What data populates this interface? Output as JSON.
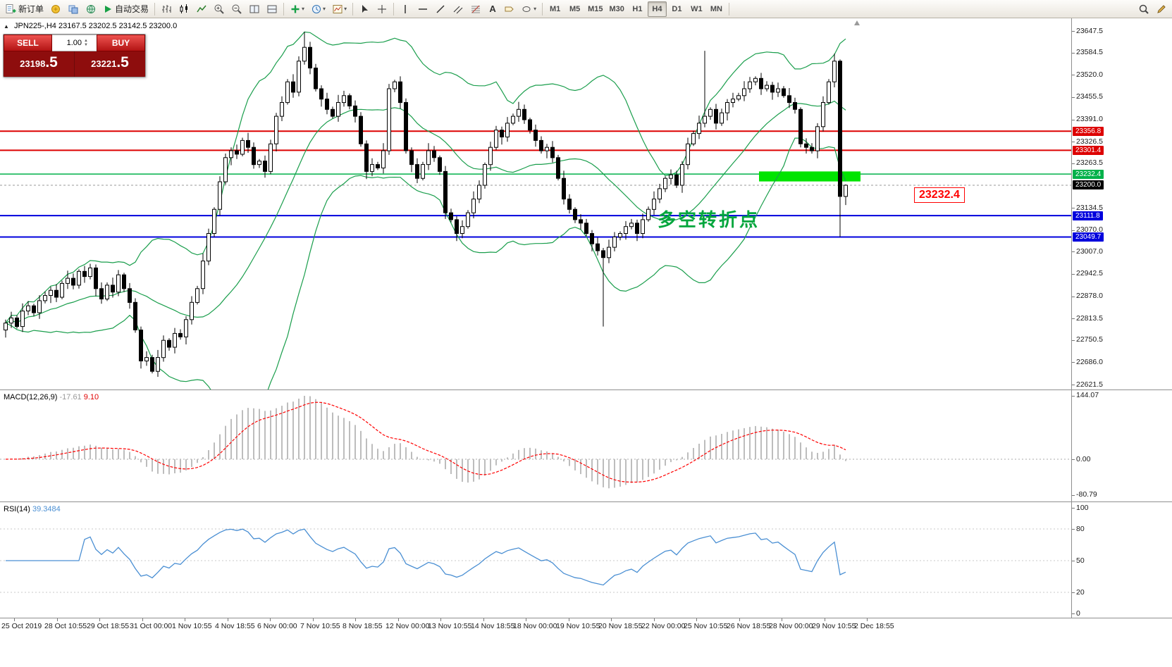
{
  "toolbar": {
    "new_order": "新订单",
    "autotrade": "自动交易",
    "text_tool": "A",
    "timeframes": [
      "M1",
      "M5",
      "M15",
      "M30",
      "H1",
      "H4",
      "D1",
      "W1",
      "MN"
    ],
    "active_timeframe": "H4"
  },
  "chart": {
    "title": "JPN225-,H4",
    "ohlc_text": "23167.5 23202.5 23142.5 23200.0",
    "one_click": {
      "sell_label": "SELL",
      "buy_label": "BUY",
      "volume": "1.00",
      "sell_price": "23198",
      "sell_frac": ".5",
      "buy_price": "23221",
      "buy_frac": ".5"
    },
    "annotation": "多空转折点",
    "callout": "23232.4"
  },
  "macd": {
    "label": "MACD(12,26,9)",
    "value": "-17.61",
    "signal_value": "9.10"
  },
  "rsi": {
    "label": "RSI(14)",
    "value": "39.3484"
  },
  "colors": {
    "up": "#ffffff",
    "down": "#000000",
    "wick": "#000000",
    "bands": "#1a9e4c",
    "hline_red": "#dd0000",
    "hline_blue": "#0000dd",
    "hline_green": "#00b14a",
    "rect": "#00e400",
    "bid_tag": "#000000",
    "macd_hist": "#bdbdbd",
    "macd_signal": "#ff0000",
    "rsi_line": "#4a8fd3",
    "annotation": "#00a63c",
    "callout": "#ff0000"
  },
  "chart_data": {
    "type": "candlestick",
    "symbol": "JPN225-",
    "timeframe": "H4",
    "title": "JPN225-,H4 23167.5 23202.5 23142.5 23200.0",
    "last_ohlc": {
      "open": 23167.5,
      "high": 23202.5,
      "low": 23142.5,
      "close": 23200.0
    },
    "ylim": [
      22607.3,
      23684.3
    ],
    "y_axis_labels": [
      23647.5,
      23584.5,
      23520.0,
      23455.5,
      23391.0,
      23326.5,
      23263.5,
      23134.5,
      23070.0,
      23007.0,
      22942.5,
      22878.0,
      22813.5,
      22750.5,
      22686.0,
      22621.5
    ],
    "price_tags": [
      {
        "value": 23356.8,
        "color": "#dd0000"
      },
      {
        "value": 23301.4,
        "color": "#dd0000"
      },
      {
        "value": 23232.4,
        "color": "#00b14a"
      },
      {
        "value": 23200.0,
        "color": "#000000"
      },
      {
        "value": 23111.8,
        "color": "#0000dd"
      },
      {
        "value": 23049.7,
        "color": "#0000dd"
      }
    ],
    "hlines": [
      {
        "price": 23356.8,
        "color": "#dd0000",
        "width": 2
      },
      {
        "price": 23301.4,
        "color": "#dd0000",
        "width": 2
      },
      {
        "price": 23232.4,
        "color": "#00b14a",
        "width": 1.5
      },
      {
        "price": 23111.8,
        "color": "#0000dd",
        "width": 2
      },
      {
        "price": 23049.7,
        "color": "#0000dd",
        "width": 2
      }
    ],
    "bid": 23200.0,
    "rectangle": {
      "from_index": 134,
      "to_index": 152,
      "top": 23240,
      "bottom": 23211
    },
    "bollinger": {
      "period": 20,
      "deviation": 2
    },
    "macd_scale": [
      144.07,
      0.0,
      -80.79
    ],
    "rsi_scale": [
      100,
      80,
      50,
      20,
      0
    ],
    "rsi_levels": [
      80,
      50,
      20
    ],
    "x_labels": [
      "25 Oct 2019",
      "28 Oct 10:55",
      "29 Oct 18:55",
      "31 Oct 00:00",
      "1 Nov 10:55",
      "4 Nov 18:55",
      "6 Nov 00:00",
      "7 Nov 10:55",
      "8 Nov 18:55",
      "12 Nov 00:00",
      "13 Nov 10:55",
      "14 Nov 18:55",
      "18 Nov 00:00",
      "19 Nov 10:55",
      "20 Nov 18:55",
      "22 Nov 00:00",
      "25 Nov 10:55",
      "26 Nov 18:55",
      "28 Nov 00:00",
      "29 Nov 10:55",
      "2 Dec 18:55"
    ],
    "candles": [
      [
        22780,
        22810,
        22758,
        22800
      ],
      [
        22800,
        22833,
        22786,
        22815
      ],
      [
        22815,
        22823,
        22784,
        22790
      ],
      [
        22790,
        22857,
        22774,
        22835
      ],
      [
        22835,
        22864,
        22823,
        22850
      ],
      [
        22850,
        22856,
        22820,
        22830
      ],
      [
        22830,
        22881,
        22812,
        22865
      ],
      [
        22865,
        22892,
        22857,
        22880
      ],
      [
        22880,
        22905,
        22858,
        22895
      ],
      [
        22895,
        22913,
        22861,
        22875
      ],
      [
        22875,
        22923,
        22869,
        22915
      ],
      [
        22915,
        22952,
        22899,
        22930
      ],
      [
        22930,
        22944,
        22898,
        22910
      ],
      [
        22910,
        22956,
        22900,
        22950
      ],
      [
        22950,
        22966,
        22917,
        22935
      ],
      [
        22935,
        22972,
        22927,
        22960
      ],
      [
        22960,
        22970,
        22878,
        22900
      ],
      [
        22900,
        22918,
        22856,
        22870
      ],
      [
        22870,
        22918,
        22864,
        22910
      ],
      [
        22910,
        22932,
        22874,
        22890
      ],
      [
        22890,
        22954,
        22878,
        22940
      ],
      [
        22940,
        22946,
        22890,
        22900
      ],
      [
        22900,
        22916,
        22842,
        22860
      ],
      [
        22860,
        22872,
        22772,
        22780
      ],
      [
        22780,
        22790,
        22668,
        22690
      ],
      [
        22690,
        22718,
        22676,
        22700
      ],
      [
        22700,
        22708,
        22654,
        22660
      ],
      [
        22660,
        22722,
        22644,
        22700
      ],
      [
        22700,
        22764,
        22688,
        22750
      ],
      [
        22750,
        22756,
        22720,
        22730
      ],
      [
        22730,
        22786,
        22712,
        22770
      ],
      [
        22770,
        22782,
        22752,
        22760
      ],
      [
        22760,
        22820,
        22738,
        22810
      ],
      [
        22810,
        22878,
        22796,
        22860
      ],
      [
        22860,
        22908,
        22854,
        22900
      ],
      [
        22900,
        23002,
        22884,
        22980
      ],
      [
        22980,
        23074,
        22968,
        23060
      ],
      [
        23060,
        23136,
        23050,
        23130
      ],
      [
        23130,
        23226,
        23112,
        23210
      ],
      [
        23210,
        23292,
        23202,
        23280
      ],
      [
        23280,
        23310,
        23258,
        23300
      ],
      [
        23300,
        23318,
        23276,
        23290
      ],
      [
        23290,
        23338,
        23284,
        23330
      ],
      [
        23330,
        23352,
        23294,
        23310
      ],
      [
        23310,
        23324,
        23248,
        23260
      ],
      [
        23260,
        23276,
        23250,
        23270
      ],
      [
        23270,
        23286,
        23222,
        23240
      ],
      [
        23240,
        23332,
        23232,
        23320
      ],
      [
        23320,
        23410,
        23298,
        23400
      ],
      [
        23400,
        23458,
        23386,
        23440
      ],
      [
        23440,
        23508,
        23434,
        23500
      ],
      [
        23500,
        23522,
        23454,
        23470
      ],
      [
        23470,
        23574,
        23458,
        23560
      ],
      [
        23560,
        23645,
        23550,
        23600
      ],
      [
        23600,
        23616,
        23522,
        23540
      ],
      [
        23540,
        23552,
        23472,
        23480
      ],
      [
        23480,
        23490,
        23428,
        23450
      ],
      [
        23450,
        23468,
        23406,
        23420
      ],
      [
        23420,
        23428,
        23394,
        23400
      ],
      [
        23400,
        23462,
        23384,
        23440
      ],
      [
        23440,
        23474,
        23428,
        23460
      ],
      [
        23460,
        23466,
        23420,
        23430
      ],
      [
        23430,
        23446,
        23382,
        23400
      ],
      [
        23400,
        23412,
        23312,
        23320
      ],
      [
        23320,
        23330,
        23218,
        23240
      ],
      [
        23240,
        23278,
        23226,
        23260
      ],
      [
        23260,
        23268,
        23244,
        23250
      ],
      [
        23250,
        23322,
        23234,
        23300
      ],
      [
        23300,
        23494,
        23288,
        23480
      ],
      [
        23480,
        23506,
        23470,
        23500
      ],
      [
        23500,
        23516,
        23422,
        23440
      ],
      [
        23440,
        23452,
        23292,
        23300
      ],
      [
        23300,
        23310,
        23238,
        23260
      ],
      [
        23260,
        23278,
        23206,
        23220
      ],
      [
        23220,
        23268,
        23214,
        23260
      ],
      [
        23260,
        23322,
        23244,
        23300
      ],
      [
        23300,
        23314,
        23268,
        23280
      ],
      [
        23280,
        23286,
        23230,
        23240
      ],
      [
        23240,
        23256,
        23102,
        23120
      ],
      [
        23120,
        23132,
        23092,
        23100
      ],
      [
        23100,
        23110,
        23038,
        23060
      ],
      [
        23060,
        23098,
        23046,
        23080
      ],
      [
        23080,
        23128,
        23074,
        23120
      ],
      [
        23120,
        23182,
        23104,
        23160
      ],
      [
        23160,
        23214,
        23148,
        23200
      ],
      [
        23200,
        23266,
        23190,
        23260
      ],
      [
        23260,
        23326,
        23242,
        23310
      ],
      [
        23310,
        23372,
        23302,
        23360
      ],
      [
        23360,
        23370,
        23318,
        23340
      ],
      [
        23340,
        23398,
        23326,
        23380
      ],
      [
        23380,
        23408,
        23374,
        23400
      ],
      [
        23400,
        23442,
        23384,
        23420
      ],
      [
        23420,
        23434,
        23378,
        23390
      ],
      [
        23390,
        23396,
        23350,
        23360
      ],
      [
        23360,
        23376,
        23312,
        23330
      ],
      [
        23330,
        23342,
        23292,
        23300
      ],
      [
        23300,
        23320,
        23278,
        23310
      ],
      [
        23310,
        23328,
        23266,
        23280
      ],
      [
        23280,
        23288,
        23214,
        23220
      ],
      [
        23220,
        23242,
        23144,
        23160
      ],
      [
        23160,
        23174,
        23118,
        23130
      ],
      [
        23130,
        23136,
        23090,
        23100
      ],
      [
        23100,
        23116,
        23072,
        23090
      ],
      [
        23090,
        23102,
        23052,
        23060
      ],
      [
        23060,
        23070,
        23008,
        23030
      ],
      [
        23030,
        23048,
        22996,
        23010
      ],
      [
        23010,
        23018,
        22790,
        22990
      ],
      [
        22990,
        23042,
        22974,
        23020
      ],
      [
        23020,
        23064,
        23008,
        23050
      ],
      [
        23050,
        23066,
        23040,
        23060
      ],
      [
        23060,
        23096,
        23042,
        23080
      ],
      [
        23080,
        23102,
        23072,
        23090
      ],
      [
        23090,
        23100,
        23038,
        23060
      ],
      [
        23060,
        23118,
        23046,
        23100
      ],
      [
        23100,
        23138,
        23094,
        23130
      ],
      [
        23130,
        23182,
        23114,
        23160
      ],
      [
        23160,
        23204,
        23148,
        23190
      ],
      [
        23190,
        23226,
        23180,
        23220
      ],
      [
        23220,
        23246,
        23202,
        23230
      ],
      [
        23230,
        23242,
        23192,
        23200
      ],
      [
        23200,
        23270,
        23178,
        23260
      ],
      [
        23260,
        23338,
        23246,
        23320
      ],
      [
        23320,
        23358,
        23314,
        23350
      ],
      [
        23350,
        23402,
        23334,
        23380
      ],
      [
        23380,
        23590,
        23368,
        23400
      ],
      [
        23400,
        23426,
        23390,
        23420
      ],
      [
        23420,
        23436,
        23362,
        23380
      ],
      [
        23380,
        23422,
        23372,
        23410
      ],
      [
        23410,
        23450,
        23388,
        23440
      ],
      [
        23440,
        23468,
        23426,
        23450
      ],
      [
        23450,
        23468,
        23444,
        23460
      ],
      [
        23460,
        23502,
        23444,
        23480
      ],
      [
        23480,
        23514,
        23468,
        23500
      ],
      [
        23500,
        23516,
        23490,
        23510
      ],
      [
        23510,
        23526,
        23462,
        23480
      ],
      [
        23480,
        23502,
        23472,
        23490
      ],
      [
        23490,
        23500,
        23448,
        23470
      ],
      [
        23470,
        23498,
        23456,
        23480
      ],
      [
        23480,
        23488,
        23454,
        23460
      ],
      [
        23460,
        23482,
        23424,
        23440
      ],
      [
        23440,
        23454,
        23408,
        23420
      ],
      [
        23420,
        23426,
        23310,
        23320
      ],
      [
        23320,
        23336,
        23292,
        23310
      ],
      [
        23310,
        23322,
        23292,
        23300
      ],
      [
        23300,
        23380,
        23278,
        23370
      ],
      [
        23370,
        23458,
        23356,
        23440
      ],
      [
        23440,
        23508,
        23434,
        23500
      ],
      [
        23500,
        23582,
        23484,
        23560
      ],
      [
        23560,
        23565,
        23050,
        23167.5
      ],
      [
        23167.5,
        23202.5,
        23142.5,
        23200
      ]
    ]
  }
}
